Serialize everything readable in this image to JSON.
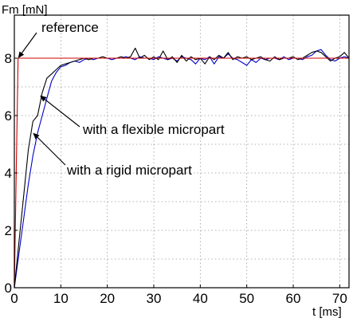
{
  "chart_data": {
    "type": "line",
    "title": "",
    "ylabel": "Fm [mN]",
    "xlabel": "t [ms]",
    "xlim": [
      0,
      72
    ],
    "ylim": [
      0,
      9.5
    ],
    "x_ticks": [
      0,
      10,
      20,
      30,
      40,
      50,
      60,
      70
    ],
    "x_tick_labels": [
      "0",
      "10",
      "20",
      "30",
      "40",
      "50",
      "60",
      "70"
    ],
    "y_ticks": [
      0,
      2,
      4,
      6,
      8
    ],
    "grid": true,
    "series": [
      {
        "name": "reference",
        "color": "#d00000",
        "x": [
          0,
          0.8,
          72
        ],
        "y": [
          0,
          8.0,
          8.0
        ]
      },
      {
        "name": "with a flexible micropart",
        "color": "#000000",
        "x": [
          0,
          1,
          2,
          3,
          4,
          5,
          6,
          7,
          8,
          9,
          10,
          11,
          12,
          13,
          14,
          15,
          16,
          17,
          18,
          19,
          20,
          21,
          22,
          23,
          24,
          25,
          26,
          27,
          28,
          29,
          30,
          31,
          32,
          33,
          34,
          35,
          36,
          37,
          38,
          39,
          40,
          41,
          42,
          43,
          44,
          45,
          46,
          47,
          48,
          49,
          50,
          51,
          52,
          53,
          54,
          55,
          56,
          57,
          58,
          59,
          60,
          61,
          62,
          63,
          64,
          65,
          66,
          67,
          68,
          69,
          70,
          71,
          72
        ],
        "y": [
          0,
          1.6,
          3.2,
          4.8,
          5.8,
          6.0,
          6.8,
          7.3,
          7.45,
          7.6,
          7.75,
          7.8,
          7.85,
          7.9,
          7.95,
          8.0,
          7.95,
          8.0,
          8.0,
          8.05,
          8.0,
          8.0,
          8.0,
          8.05,
          8.0,
          8.05,
          8.35,
          8.0,
          8.1,
          7.95,
          8.05,
          7.95,
          8.25,
          7.95,
          8.05,
          7.85,
          8.1,
          7.9,
          8.05,
          7.95,
          8.0,
          7.8,
          8.05,
          7.95,
          8.1,
          8.0,
          8.2,
          7.95,
          8.05,
          8.0,
          8.05,
          7.95,
          8.0,
          8.05,
          7.95,
          7.9,
          8.05,
          7.95,
          8.0,
          8.0,
          8.05,
          7.95,
          8.0,
          8.1,
          8.2,
          8.25,
          8.2,
          8.05,
          7.9,
          8.0,
          8.05,
          8.2,
          8.0
        ]
      },
      {
        "name": "with a rigid micropart",
        "color": "#0000cc",
        "x": [
          0,
          1,
          2,
          3,
          4,
          5,
          6,
          7,
          8,
          9,
          10,
          11,
          12,
          13,
          14,
          15,
          16,
          17,
          18,
          19,
          20,
          21,
          22,
          23,
          24,
          25,
          26,
          27,
          28,
          29,
          30,
          31,
          32,
          33,
          34,
          35,
          36,
          37,
          38,
          39,
          40,
          41,
          42,
          43,
          44,
          45,
          46,
          47,
          48,
          49,
          50,
          51,
          52,
          53,
          54,
          55,
          56,
          57,
          58,
          59,
          60,
          61,
          62,
          63,
          64,
          65,
          66,
          67,
          68,
          69,
          70,
          71,
          72
        ],
        "y": [
          0,
          1.2,
          2.4,
          3.6,
          4.6,
          5.4,
          6.0,
          6.6,
          7.2,
          7.5,
          7.7,
          7.75,
          7.85,
          7.9,
          7.85,
          7.95,
          8.0,
          7.95,
          8.0,
          8.0,
          8.0,
          7.95,
          8.0,
          8.0,
          8.05,
          8.0,
          7.95,
          8.05,
          8.0,
          8.0,
          7.95,
          8.05,
          8.0,
          7.95,
          8.0,
          7.9,
          8.05,
          8.0,
          7.95,
          7.8,
          8.0,
          7.95,
          8.05,
          7.8,
          8.05,
          8.0,
          8.15,
          8.0,
          7.95,
          7.85,
          7.75,
          7.95,
          7.85,
          8.0,
          7.95,
          8.0,
          8.0,
          7.95,
          8.05,
          7.95,
          8.0,
          8.0,
          7.95,
          8.05,
          8.1,
          8.25,
          8.3,
          8.1,
          7.95,
          7.9,
          8.0,
          8.05,
          8.0
        ]
      }
    ],
    "annotations": [
      {
        "text": "reference",
        "target": [
          0.8,
          8.0
        ]
      },
      {
        "text": "with a flexible micropart",
        "target": [
          5.5,
          6.7
        ]
      },
      {
        "text": "with a rigid micropart",
        "target": [
          4.0,
          5.4
        ]
      }
    ]
  }
}
